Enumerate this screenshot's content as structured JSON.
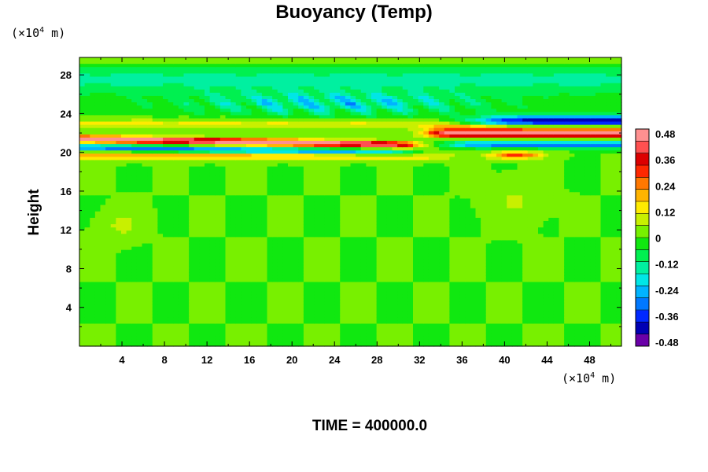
{
  "chart_data": {
    "type": "heatmap",
    "title": "Buoyancy (Temp)",
    "ylabel": "Height",
    "x_unit": {
      "prefix": "(×10",
      "exp": "4",
      "suffix": " m)"
    },
    "y_unit": {
      "prefix": "(×10",
      "exp": "4",
      "suffix": " m)"
    },
    "xlim": [
      0,
      51
    ],
    "ylim": [
      0,
      29.8
    ],
    "x_ticks": [
      4,
      8,
      12,
      16,
      20,
      24,
      28,
      32,
      36,
      40,
      44,
      48
    ],
    "y_ticks": [
      4,
      8,
      12,
      16,
      20,
      24,
      28
    ],
    "colorbar": {
      "range": [
        -0.48,
        0.48
      ],
      "labels": [
        "0.48",
        "0.36",
        "0.24",
        "0.12",
        "0",
        "-0.12",
        "-0.24",
        "-0.36",
        "-0.48"
      ],
      "colors": [
        "#6a00a8",
        "#0000b4",
        "#0028ff",
        "#0078ff",
        "#00b4ff",
        "#00e6e6",
        "#00f0a0",
        "#00f050",
        "#10e810",
        "#78f000",
        "#c8f000",
        "#ffeb00",
        "#ffb400",
        "#ff7800",
        "#ff2800",
        "#dc0000",
        "#ff5050",
        "#ff9090"
      ]
    },
    "features": [
      {
        "kind": "warm band",
        "x_range": [
          0,
          32
        ],
        "y_center": 21.0,
        "peak": 0.45
      },
      {
        "kind": "warm band",
        "x_range": [
          33,
          51
        ],
        "y_center": 21.8,
        "peak": 0.48
      },
      {
        "kind": "cold band",
        "x_range": [
          0,
          32
        ],
        "y_center": 20.3,
        "peak": -0.3
      },
      {
        "kind": "cold band",
        "x_range": [
          38,
          51
        ],
        "y_center": 23.2,
        "peak": -0.42
      },
      {
        "kind": "cold wavy region",
        "x_range": [
          2,
          45
        ],
        "y_center": 25.0,
        "peak": -0.25
      }
    ]
  },
  "footer": {
    "time_label": "TIME = 400000.0"
  }
}
